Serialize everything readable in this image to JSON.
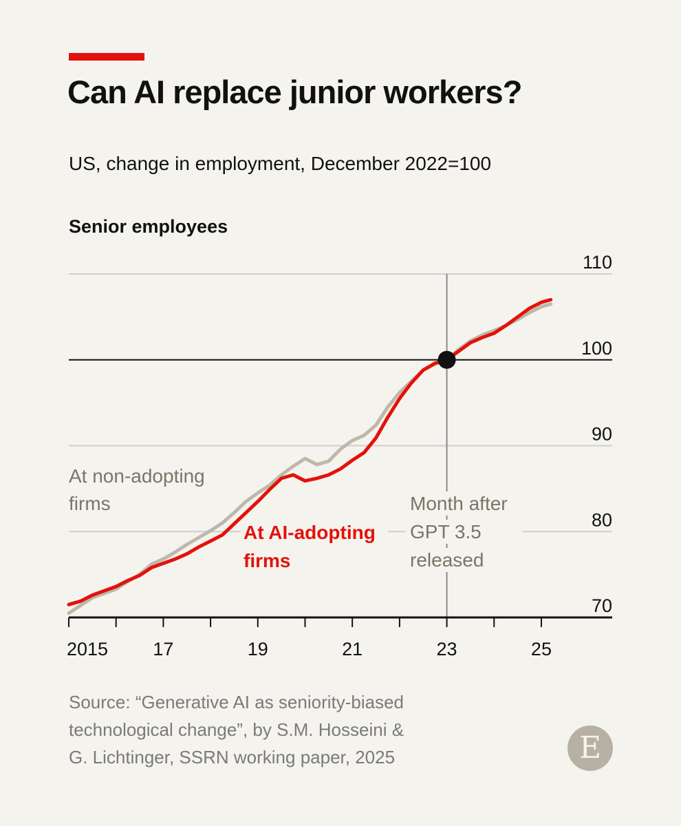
{
  "header": {
    "title": "Can AI replace junior workers?",
    "subtitle": "US, change in employment, December 2022=100",
    "panel_title": "Senior employees"
  },
  "colors": {
    "accent": "#e3120b",
    "ai_series": "#e3120b",
    "non_series": "#bdb8a9",
    "grid": "#cfcfcf",
    "axis": "#111111",
    "source_text": "#7a7a7a",
    "non_label": "#7a7566"
  },
  "chart_data": {
    "type": "line",
    "title": "Senior employees",
    "ylabel": "US, change in employment, December 2022=100",
    "xlim": [
      2015.0,
      2026.5
    ],
    "ylim": [
      70,
      110
    ],
    "yticks": [
      110,
      100,
      90,
      80,
      70
    ],
    "x_tick_positions": [
      2015,
      2016,
      2017,
      2018,
      2019,
      2020,
      2021,
      2022,
      2023,
      2024,
      2025
    ],
    "x_tick_labels": [
      {
        "x": 2015,
        "label": "2015"
      },
      {
        "x": 2017,
        "label": "17"
      },
      {
        "x": 2019,
        "label": "19"
      },
      {
        "x": 2021,
        "label": "21"
      },
      {
        "x": 2023,
        "label": "23"
      },
      {
        "x": 2025,
        "label": "25"
      }
    ],
    "baseline": 100,
    "reference_line": {
      "x": 2023.0,
      "label_lines": [
        "Month after",
        "GPT 3.5",
        "released"
      ]
    },
    "marker": {
      "x": 2023.0,
      "y": 100
    },
    "series": [
      {
        "name": "At non-adopting firms",
        "label_lines": [
          "At non-adopting",
          "firms"
        ],
        "x": [
          2015.0,
          2015.25,
          2015.5,
          2015.75,
          2016.0,
          2016.25,
          2016.5,
          2016.75,
          2017.0,
          2017.25,
          2017.5,
          2017.75,
          2018.0,
          2018.25,
          2018.5,
          2018.75,
          2019.0,
          2019.25,
          2019.5,
          2019.75,
          2020.0,
          2020.25,
          2020.5,
          2020.75,
          2021.0,
          2021.25,
          2021.5,
          2021.75,
          2022.0,
          2022.25,
          2022.5,
          2022.75,
          2023.0,
          2023.25,
          2023.5,
          2023.75,
          2024.0,
          2024.25,
          2024.5,
          2024.75,
          2025.0,
          2025.2
        ],
        "values": [
          70.5,
          71.4,
          72.3,
          72.8,
          73.3,
          74.2,
          75.0,
          76.2,
          76.8,
          77.6,
          78.5,
          79.3,
          80.1,
          81.0,
          82.2,
          83.5,
          84.5,
          85.4,
          86.6,
          87.6,
          88.5,
          87.8,
          88.2,
          89.6,
          90.6,
          91.2,
          92.4,
          94.5,
          96.2,
          97.5,
          98.8,
          99.5,
          100.0,
          101.2,
          102.2,
          102.9,
          103.4,
          104.0,
          104.7,
          105.5,
          106.2,
          106.5
        ]
      },
      {
        "name": "At AI-adopting firms",
        "label_lines": [
          "At AI-adopting",
          "firms"
        ],
        "x": [
          2015.0,
          2015.25,
          2015.5,
          2015.75,
          2016.0,
          2016.25,
          2016.5,
          2016.75,
          2017.0,
          2017.25,
          2017.5,
          2017.75,
          2018.0,
          2018.25,
          2018.5,
          2018.75,
          2019.0,
          2019.25,
          2019.5,
          2019.75,
          2020.0,
          2020.25,
          2020.5,
          2020.75,
          2021.0,
          2021.25,
          2021.5,
          2021.75,
          2022.0,
          2022.25,
          2022.5,
          2022.75,
          2023.0,
          2023.25,
          2023.5,
          2023.75,
          2024.0,
          2024.25,
          2024.5,
          2024.75,
          2025.0,
          2025.2
        ],
        "values": [
          71.5,
          71.9,
          72.6,
          73.1,
          73.6,
          74.3,
          74.9,
          75.8,
          76.3,
          76.8,
          77.4,
          78.2,
          78.9,
          79.6,
          80.9,
          82.2,
          83.5,
          84.9,
          86.2,
          86.6,
          85.9,
          86.2,
          86.6,
          87.3,
          88.3,
          89.2,
          90.9,
          93.3,
          95.5,
          97.3,
          98.8,
          99.6,
          100.0,
          101.0,
          102.0,
          102.6,
          103.1,
          104.0,
          105.0,
          106.0,
          106.7,
          107.0
        ]
      }
    ]
  },
  "source": {
    "line1": "Source: “Generative AI as seniority-biased",
    "line2": "technological change”, by S.M. Hosseini &",
    "line3": "G. Lichtinger, SSRN working paper, 2025"
  },
  "logo": {
    "letter": "E"
  }
}
